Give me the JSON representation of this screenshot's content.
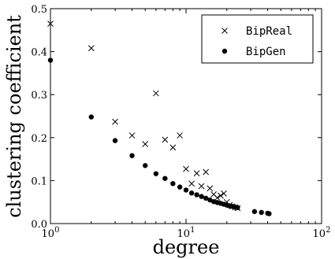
{
  "chart_data": {
    "type": "scatter",
    "xlabel": "degree",
    "ylabel": "clustering coefficient",
    "xscale": "log",
    "xlim": [
      1,
      100
    ],
    "ylim": [
      0,
      0.5
    ],
    "x_ticks": [
      {
        "value": 1,
        "base": "10",
        "exp": "0"
      },
      {
        "value": 10,
        "base": "10",
        "exp": "1"
      },
      {
        "value": 100,
        "base": "10",
        "exp": "2"
      }
    ],
    "y_ticks": [
      {
        "value": 0.0,
        "label": "0.0"
      },
      {
        "value": 0.1,
        "label": "0.1"
      },
      {
        "value": 0.2,
        "label": "0.2"
      },
      {
        "value": 0.3,
        "label": "0.3"
      },
      {
        "value": 0.4,
        "label": "0.4"
      },
      {
        "value": 0.5,
        "label": "0.5"
      }
    ],
    "legend_position": "top-right",
    "grid": false,
    "series": [
      {
        "name": "BipReal",
        "marker": "x",
        "color": "#000000",
        "x": [
          1,
          2,
          3,
          4,
          5,
          6,
          7,
          8,
          9,
          10,
          11,
          12,
          13,
          14,
          15,
          16,
          17,
          18,
          19,
          20,
          21,
          22,
          23,
          24
        ],
        "y": [
          0.465,
          0.408,
          0.237,
          0.205,
          0.185,
          0.303,
          0.195,
          0.177,
          0.205,
          0.127,
          0.093,
          0.117,
          0.087,
          0.12,
          0.082,
          0.068,
          0.06,
          0.065,
          0.07,
          0.05,
          0.043,
          0.04,
          0.038,
          0.036
        ]
      },
      {
        "name": "BipGen",
        "marker": "o",
        "color": "#000000",
        "x": [
          1,
          2,
          3,
          4,
          5,
          6,
          7,
          8,
          9,
          10,
          11,
          12,
          13,
          14,
          15,
          16,
          17,
          18,
          19,
          20,
          21,
          22,
          23,
          24,
          32,
          36,
          40,
          41
        ],
        "y": [
          0.38,
          0.248,
          0.193,
          0.158,
          0.135,
          0.116,
          0.105,
          0.093,
          0.085,
          0.078,
          0.071,
          0.067,
          0.063,
          0.059,
          0.055,
          0.051,
          0.049,
          0.047,
          0.045,
          0.043,
          0.041,
          0.04,
          0.038,
          0.037,
          0.028,
          0.026,
          0.024,
          0.023
        ]
      }
    ]
  }
}
